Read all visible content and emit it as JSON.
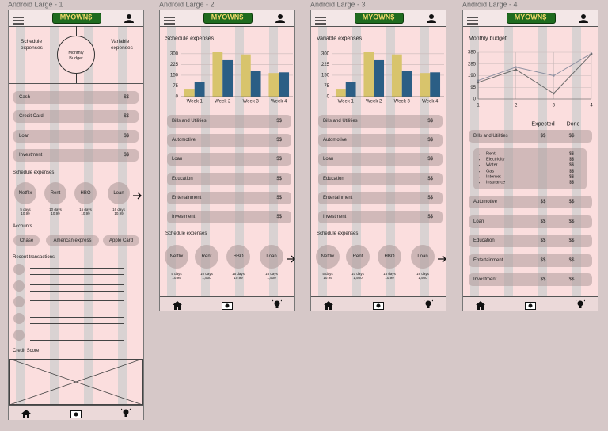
{
  "frames": [
    {
      "title": "Android Large - 1",
      "logo": "MYOWN$",
      "summary": {
        "left": "Schedule expenses",
        "center": "Monthly Budget",
        "right": "Variable expenses"
      },
      "rows": [
        {
          "label": "Cash",
          "value": "$$"
        },
        {
          "label": "Credit Card",
          "value": "$$"
        },
        {
          "label": "Loan",
          "value": "$$"
        },
        {
          "label": "Investment",
          "value": "$$"
        }
      ],
      "schedule": {
        "title": "Schedule expenses",
        "items": [
          {
            "name": "Netflix",
            "days": "5 days",
            "amount": "10.99"
          },
          {
            "name": "Rent",
            "days": "10 days",
            "amount": "10.99"
          },
          {
            "name": "HBO",
            "days": "15 days",
            "amount": "10.99"
          },
          {
            "name": "Loan",
            "days": "16 days",
            "amount": "10.99"
          }
        ]
      },
      "accounts": {
        "title": "Accounts",
        "items": [
          "Chase",
          "American express",
          "Apple Card"
        ]
      },
      "transactions": {
        "title": "Recent transactions"
      },
      "credit": {
        "title": "Credit Score"
      }
    },
    {
      "title": "Android Large - 2",
      "logo": "MYOWN$",
      "chart_data": {
        "type": "bar",
        "title": "Schedule expenses",
        "categories": [
          "Week 1",
          "Week 2",
          "Week 3",
          "Week 4"
        ],
        "series": [
          {
            "color": "#d8c46c",
            "values": [
              55,
              310,
              295,
              165
            ]
          },
          {
            "color": "#2b5e85",
            "values": [
              100,
              255,
              180,
              170
            ]
          }
        ],
        "ylim": [
          0,
          310
        ],
        "yticks": [
          0,
          75,
          150,
          225,
          300
        ],
        "grid": true
      },
      "rows": [
        {
          "label": "Bills and Utilities",
          "value": "$$"
        },
        {
          "label": "Automotive",
          "value": "$$"
        },
        {
          "label": "Loan",
          "value": "$$"
        },
        {
          "label": "Education",
          "value": "$$"
        },
        {
          "label": "Entertainment",
          "value": "$$"
        },
        {
          "label": "Investment",
          "value": "$$"
        }
      ],
      "schedule": {
        "title": "Schedule expenses",
        "items": [
          {
            "name": "Netflix",
            "days": "5 days",
            "amount": "10.99"
          },
          {
            "name": "Rent",
            "days": "10 days",
            "amount": "1,500"
          },
          {
            "name": "HBO",
            "days": "15 days",
            "amount": "10.99"
          },
          {
            "name": "Loan",
            "days": "16 days",
            "amount": "1,500"
          }
        ]
      }
    },
    {
      "title": "Android Large - 3",
      "logo": "MYOWN$",
      "chart_data": {
        "type": "bar",
        "title": "Variable expenses",
        "categories": [
          "Week 1",
          "Week 2",
          "Week 3",
          "Week 4"
        ],
        "series": [
          {
            "color": "#d8c46c",
            "values": [
              55,
              310,
              295,
              165
            ]
          },
          {
            "color": "#2b5e85",
            "values": [
              100,
              255,
              180,
              170
            ]
          }
        ],
        "ylim": [
          0,
          310
        ],
        "yticks": [
          0,
          75,
          150,
          225,
          300
        ],
        "grid": true
      },
      "rows": [
        {
          "label": "Bills and Utilities",
          "value": "$$"
        },
        {
          "label": "Automotive",
          "value": "$$"
        },
        {
          "label": "Loan",
          "value": "$$"
        },
        {
          "label": "Education",
          "value": "$$"
        },
        {
          "label": "Entertainment",
          "value": "$$"
        },
        {
          "label": "Investment",
          "value": "$$"
        }
      ],
      "schedule": {
        "title": "Schedule expenses",
        "items": [
          {
            "name": "Netflix",
            "days": "5 days",
            "amount": "10.99"
          },
          {
            "name": "Rent",
            "days": "10 days",
            "amount": "1,500"
          },
          {
            "name": "HBO",
            "days": "15 days",
            "amount": "10.99"
          },
          {
            "name": "Loan",
            "days": "16 days",
            "amount": "1,500"
          }
        ]
      }
    },
    {
      "title": "Android Large - 4",
      "logo": "MYOWN$",
      "chart_data": {
        "type": "line",
        "title": "Monthly budget",
        "x": [
          1,
          2,
          3,
          4
        ],
        "series": [
          {
            "color": "#8c8fa0",
            "values": [
              150,
              260,
              190,
              370
            ]
          },
          {
            "color": "#6a6a6a",
            "values": [
              135,
              240,
              45,
              365
            ]
          }
        ],
        "xlim": [
          1,
          4
        ],
        "xticks": [
          1,
          2,
          3,
          4
        ],
        "ylim": [
          0,
          380
        ],
        "yticks": [
          0,
          95,
          190,
          285,
          380
        ],
        "grid": true
      },
      "columns": {
        "expected": "Expected",
        "done": "Done"
      },
      "bills": {
        "label": "Bills and Utilities",
        "expected": "$$",
        "done": "$$",
        "items": [
          {
            "label": "Rent",
            "done": "$$"
          },
          {
            "label": "Electricity",
            "done": "$$"
          },
          {
            "label": "Water",
            "done": "$$"
          },
          {
            "label": "Gas",
            "done": "$$"
          },
          {
            "label": "Internet",
            "done": "$$"
          },
          {
            "label": "Insurance",
            "done": "$$"
          }
        ]
      },
      "rows": [
        {
          "label": "Automotive",
          "expected": "$$",
          "done": "$$"
        },
        {
          "label": "Loan",
          "expected": "$$",
          "done": "$$"
        },
        {
          "label": "Education",
          "expected": "$$",
          "done": "$$"
        },
        {
          "label": "Entertainment",
          "expected": "$$",
          "done": "$$"
        },
        {
          "label": "Investment",
          "expected": "$$",
          "done": "$$"
        }
      ]
    }
  ]
}
